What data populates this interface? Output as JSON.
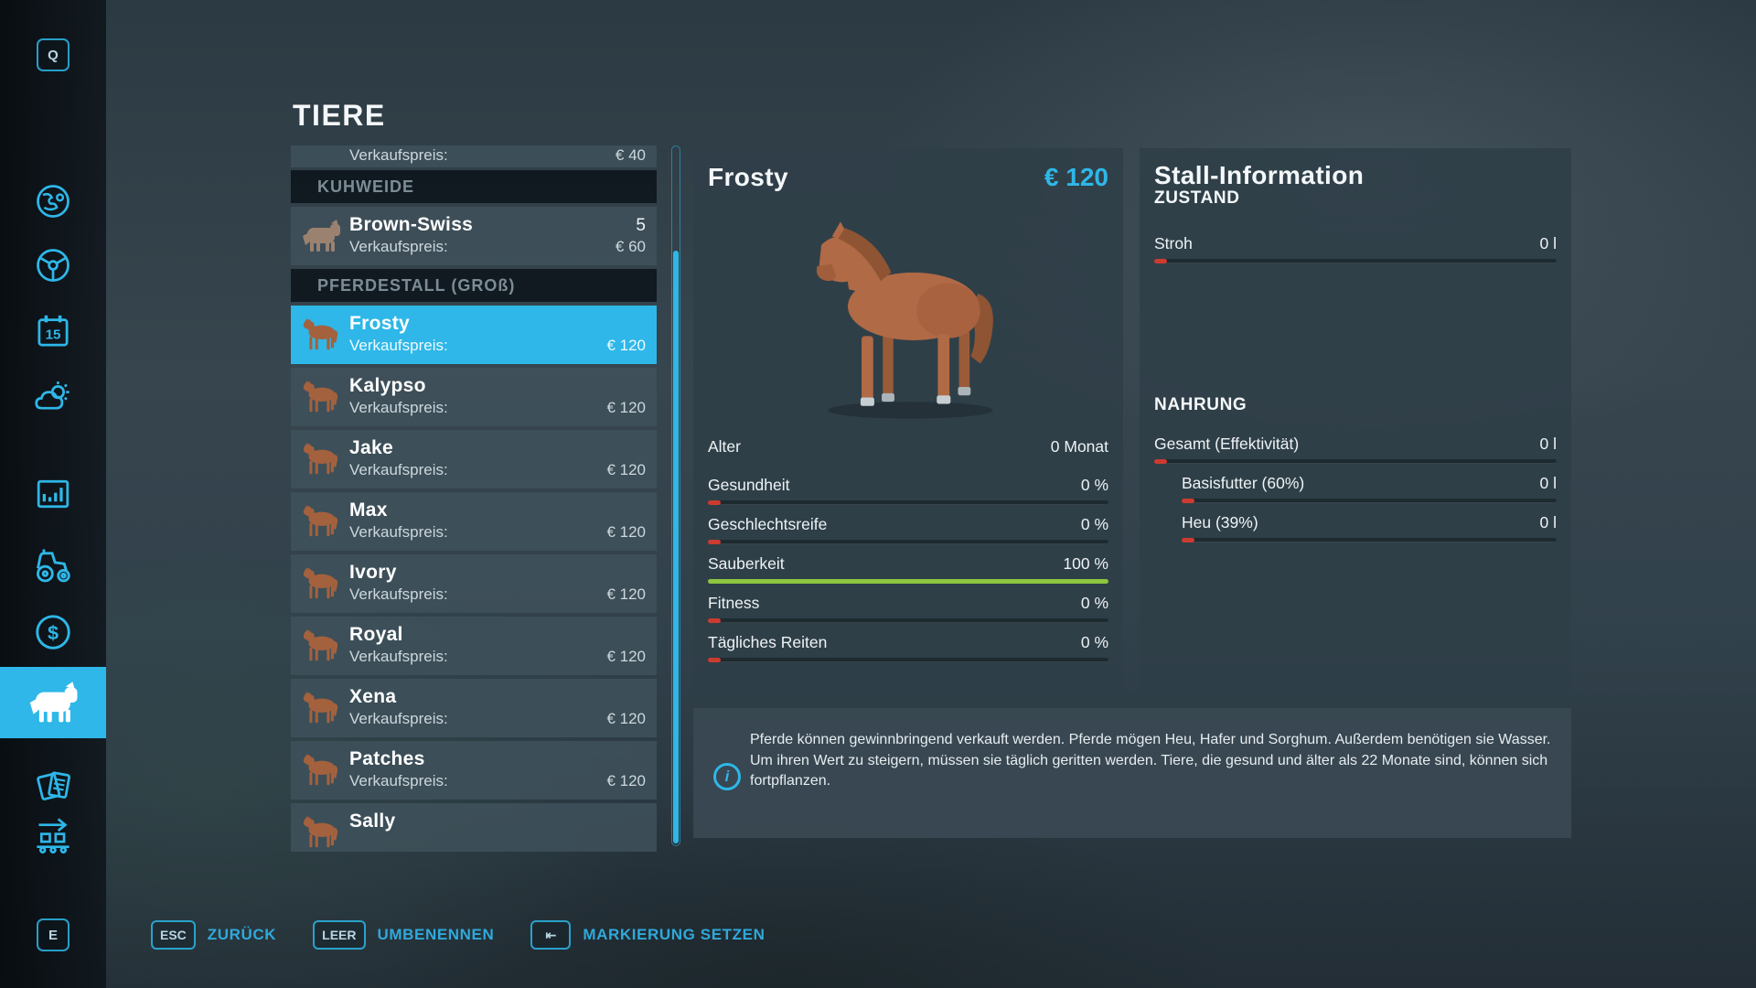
{
  "colors": {
    "accent": "#2eb7e8",
    "bar_red": "#cc3b30",
    "bar_green": "#8dc63f",
    "selected_row": "#2eb7e8"
  },
  "title": "TIERE",
  "sidebar": {
    "top_key": "Q",
    "bottom_key": "E"
  },
  "list": {
    "partial_row": {
      "price_label": "Verkaufspreis:",
      "price": "€ 40"
    },
    "section1": {
      "header": "KUHWEIDE"
    },
    "cow_row": {
      "name": "Brown-Swiss",
      "count": "5",
      "price_label": "Verkaufspreis:",
      "price": "€ 60"
    },
    "section2": {
      "header": "PFERDESTALL (GROß)"
    },
    "horses": [
      {
        "name": "Frosty",
        "price_label": "Verkaufspreis:",
        "price": "€ 120"
      },
      {
        "name": "Kalypso",
        "price_label": "Verkaufspreis:",
        "price": "€ 120"
      },
      {
        "name": "Jake",
        "price_label": "Verkaufspreis:",
        "price": "€ 120"
      },
      {
        "name": "Max",
        "price_label": "Verkaufspreis:",
        "price": "€ 120"
      },
      {
        "name": "Ivory",
        "price_label": "Verkaufspreis:",
        "price": "€ 120"
      },
      {
        "name": "Royal",
        "price_label": "Verkaufspreis:",
        "price": "€ 120"
      },
      {
        "name": "Xena",
        "price_label": "Verkaufspreis:",
        "price": "€ 120"
      },
      {
        "name": "Patches",
        "price_label": "Verkaufspreis:",
        "price": "€ 120"
      },
      {
        "name": "Sally"
      }
    ]
  },
  "detail": {
    "name": "Frosty",
    "price": "€ 120",
    "stats": [
      {
        "label": "Alter",
        "value": "0 Monat",
        "pct": null
      },
      {
        "label": "Gesundheit",
        "value": "0 %",
        "pct": 0
      },
      {
        "label": "Geschlechtsreife",
        "value": "0 %",
        "pct": 0
      },
      {
        "label": "Sauberkeit",
        "value": "100 %",
        "pct": 100
      },
      {
        "label": "Fitness",
        "value": "0 %",
        "pct": 0
      },
      {
        "label": "Tägliches Reiten",
        "value": "0 %",
        "pct": 0
      }
    ]
  },
  "stall": {
    "title": "Stall-Information",
    "zustand_header": "ZUSTAND",
    "stroh": {
      "label": "Stroh",
      "value": "0 l",
      "pct": 0
    },
    "nahrung_header": "NAHRUNG",
    "rows": [
      {
        "label": "Gesamt (Effektivität)",
        "value": "0 l",
        "pct": 0
      },
      {
        "label": "Basisfutter (60%)",
        "value": "0 l",
        "pct": 0
      },
      {
        "label": "Heu (39%)",
        "value": "0 l",
        "pct": 0
      }
    ]
  },
  "info": {
    "text": "Pferde können gewinnbringend verkauft werden. Pferde mögen Heu, Hafer und Sorghum. Außerdem benötigen sie Wasser. Um ihren Wert zu steigern, müssen sie täglich geritten werden. Tiere, die gesund und älter als 22 Monate sind, können sich fortpflanzen."
  },
  "keybinds": [
    {
      "key": "ESC",
      "label": "ZURÜCK"
    },
    {
      "key": "LEER",
      "label": "UMBENENNEN"
    },
    {
      "key": "⇤",
      "label": "MARKIERUNG SETZEN"
    }
  ]
}
